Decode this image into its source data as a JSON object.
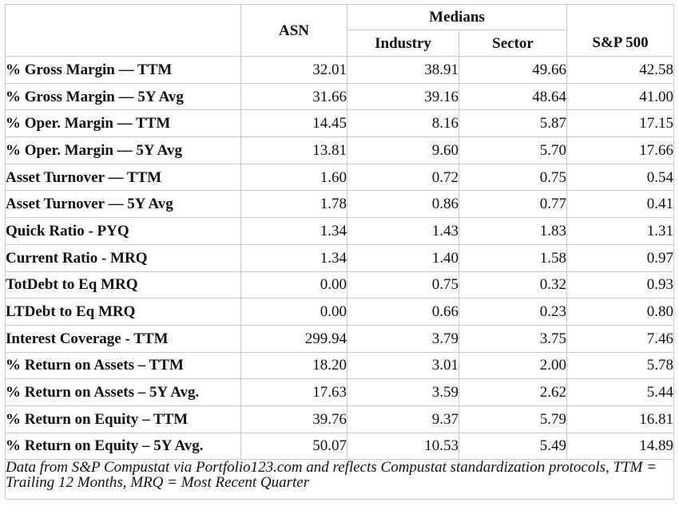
{
  "headers": {
    "company": "ASN",
    "medians": "Medians",
    "industry": "Industry",
    "sector": "Sector",
    "sp500": "S&P 500"
  },
  "rows": [
    {
      "label": "% Gross Margin — TTM",
      "asn": "32.01",
      "industry": "38.91",
      "sector": "49.66",
      "sp500": "42.58"
    },
    {
      "label": "% Gross Margin — 5Y Avg",
      "asn": "31.66",
      "industry": "39.16",
      "sector": "48.64",
      "sp500": "41.00"
    },
    {
      "label": "% Oper. Margin — TTM",
      "asn": "14.45",
      "industry": "8.16",
      "sector": "5.87",
      "sp500": "17.15"
    },
    {
      "label": "% Oper. Margin — 5Y Avg",
      "asn": "13.81",
      "industry": "9.60",
      "sector": "5.70",
      "sp500": "17.66"
    },
    {
      "label": "Asset Turnover — TTM",
      "asn": "1.60",
      "industry": "0.72",
      "sector": "0.75",
      "sp500": "0.54"
    },
    {
      "label": "Asset Turnover — 5Y Avg",
      "asn": "1.78",
      "industry": "0.86",
      "sector": "0.77",
      "sp500": "0.41"
    },
    {
      "label": "Quick Ratio - PYQ",
      "asn": "1.34",
      "industry": "1.43",
      "sector": "1.83",
      "sp500": "1.31"
    },
    {
      "label": "Current Ratio - MRQ",
      "asn": "1.34",
      "industry": "1.40",
      "sector": "1.58",
      "sp500": "0.97"
    },
    {
      "label": "TotDebt to Eq MRQ",
      "asn": "0.00",
      "industry": "0.75",
      "sector": "0.32",
      "sp500": "0.93"
    },
    {
      "label": "LTDebt to Eq MRQ",
      "asn": "0.00",
      "industry": "0.66",
      "sector": "0.23",
      "sp500": "0.80"
    },
    {
      "label": "Interest Coverage - TTM",
      "asn": "299.94",
      "industry": "3.79",
      "sector": "3.75",
      "sp500": "7.46"
    },
    {
      "label": "% Return on Assets – TTM",
      "asn": "18.20",
      "industry": "3.01",
      "sector": "2.00",
      "sp500": "5.78"
    },
    {
      "label": "% Return on Assets – 5Y Avg.",
      "asn": "17.63",
      "industry": "3.59",
      "sector": "2.62",
      "sp500": "5.44"
    },
    {
      "label": "% Return on Equity – TTM",
      "asn": "39.76",
      "industry": "9.37",
      "sector": "5.79",
      "sp500": "16.81"
    },
    {
      "label": "% Return on Equity – 5Y Avg.",
      "asn": "50.07",
      "industry": "10.53",
      "sector": "5.49",
      "sp500": "14.89"
    }
  ],
  "footnote": "Data from S&P Compustat via Portfolio123.com and reflects Compustat standardization protocols, TTM = Trailing 12 Months, MRQ = Most Recent Quarter"
}
